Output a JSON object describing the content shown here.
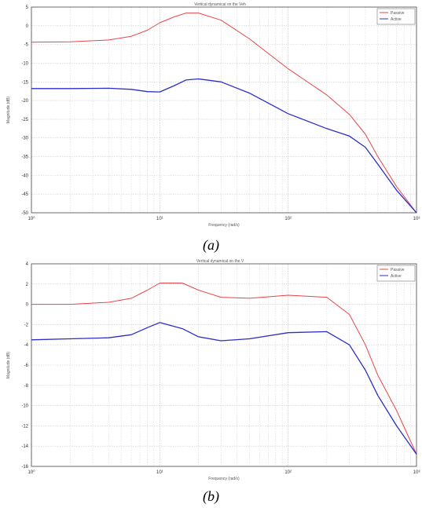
{
  "chart_data": [
    {
      "type": "line",
      "id": "a",
      "caption": "(a)",
      "title": "Vertical dynamical on the Veh",
      "xlabel": "Frequency (rad/s)",
      "ylabel": "Magnitude (dB)",
      "x_scale": "log",
      "xlim": [
        1,
        1000
      ],
      "ylim": [
        -50,
        5
      ],
      "x_ticks": [
        1,
        10,
        100,
        1000
      ],
      "x_tick_labels": [
        "10⁰",
        "10¹",
        "10²",
        "10³"
      ],
      "y_ticks": [
        -50,
        -45,
        -40,
        -35,
        -30,
        -25,
        -20,
        -15,
        -10,
        -5,
        0,
        5
      ],
      "y_tick_labels": [
        "-50",
        "-45",
        "-40",
        "-35",
        "-30",
        "-25",
        "-20",
        "-15",
        "-10",
        "-5",
        "0",
        "5"
      ],
      "grid": true,
      "legend_position": "top-right",
      "series": [
        {
          "name": "Passive",
          "color": "#e8454a",
          "x": [
            1,
            2,
            4,
            6,
            8,
            10,
            13,
            16,
            20,
            30,
            50,
            100,
            200,
            300,
            400,
            500,
            700,
            1000
          ],
          "values": [
            -4.4,
            -4.3,
            -3.8,
            -2.8,
            -1.2,
            0.8,
            2.4,
            3.4,
            3.4,
            1.5,
            -3.5,
            -11.5,
            -18.5,
            -23.7,
            -29.0,
            -35.0,
            -43.0,
            -50.0
          ]
        },
        {
          "name": "Active",
          "color": "#2d2dc8",
          "x": [
            1,
            2,
            4,
            6,
            8,
            10,
            13,
            16,
            20,
            30,
            50,
            100,
            200,
            300,
            400,
            500,
            700,
            1000
          ],
          "values": [
            -16.8,
            -16.8,
            -16.7,
            -17.0,
            -17.6,
            -17.7,
            -16.0,
            -14.5,
            -14.2,
            -15.0,
            -18.0,
            -23.5,
            -27.5,
            -29.5,
            -32.5,
            -37.0,
            -44.0,
            -50.0
          ]
        }
      ]
    },
    {
      "type": "line",
      "id": "b",
      "caption": "(b)",
      "title": "Vertical dynamical on the V",
      "xlabel": "Frequency (rad/s)",
      "ylabel": "Magnitude (dB)",
      "x_scale": "log",
      "xlim": [
        1,
        1000
      ],
      "ylim": [
        -16,
        4
      ],
      "x_ticks": [
        1,
        10,
        100,
        1000
      ],
      "x_tick_labels": [
        "10⁰",
        "10¹",
        "10²",
        "10³"
      ],
      "y_ticks": [
        -16,
        -14,
        -12,
        -10,
        -8,
        -6,
        -4,
        -2,
        0,
        2,
        4
      ],
      "y_tick_labels": [
        "-16",
        "-14",
        "-12",
        "-10",
        "-8",
        "-6",
        "-4",
        "-2",
        "0",
        "2",
        "4"
      ],
      "grid": true,
      "legend_position": "top-right",
      "series": [
        {
          "name": "Passive",
          "color": "#e8454a",
          "x": [
            1,
            2,
            4,
            6,
            8,
            10,
            15,
            20,
            30,
            50,
            100,
            200,
            300,
            400,
            500,
            700,
            1000
          ],
          "values": [
            0.0,
            0.0,
            0.2,
            0.6,
            1.4,
            2.1,
            2.1,
            1.4,
            0.7,
            0.6,
            0.9,
            0.7,
            -1.0,
            -4.0,
            -7.0,
            -10.5,
            -14.8
          ]
        },
        {
          "name": "Active",
          "color": "#2d2dc8",
          "x": [
            1,
            2,
            4,
            6,
            8,
            10,
            15,
            20,
            30,
            50,
            100,
            200,
            300,
            400,
            500,
            700,
            1000
          ],
          "values": [
            -3.5,
            -3.4,
            -3.3,
            -3.0,
            -2.3,
            -1.8,
            -2.4,
            -3.2,
            -3.6,
            -3.4,
            -2.8,
            -2.7,
            -4.0,
            -6.5,
            -9.0,
            -12.0,
            -14.8
          ]
        }
      ]
    }
  ]
}
